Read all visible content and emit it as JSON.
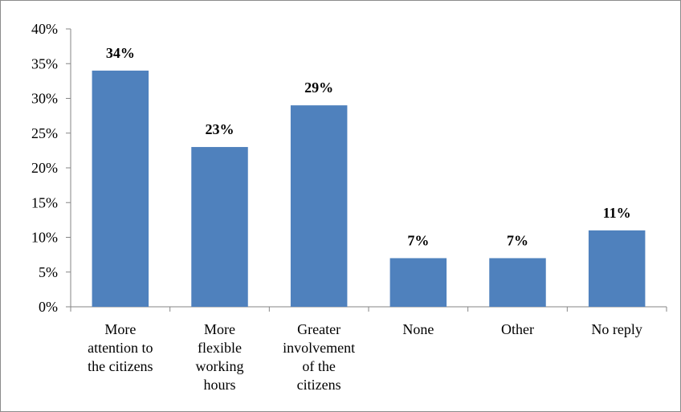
{
  "chart_data": {
    "type": "bar",
    "categories": [
      [
        "More",
        "attention to",
        "the citizens"
      ],
      [
        "More",
        "flexible",
        "working",
        "hours"
      ],
      [
        "Greater",
        "involvement",
        "of the",
        "citizens"
      ],
      [
        "None"
      ],
      [
        "Other"
      ],
      [
        "No reply"
      ]
    ],
    "values": [
      34,
      23,
      29,
      7,
      7,
      11
    ],
    "data_labels": [
      "34%",
      "23%",
      "29%",
      "7%",
      "7%",
      "11%"
    ],
    "yticks": [
      0,
      5,
      10,
      15,
      20,
      25,
      30,
      35,
      40
    ],
    "ytick_labels": [
      "0%",
      "5%",
      "10%",
      "15%",
      "20%",
      "25%",
      "30%",
      "35%",
      "40%"
    ],
    "ylim": [
      0,
      40
    ],
    "title": "",
    "xlabel": "",
    "ylabel": "",
    "grid": false,
    "legend": false,
    "bar_color": "#4F81BD"
  }
}
